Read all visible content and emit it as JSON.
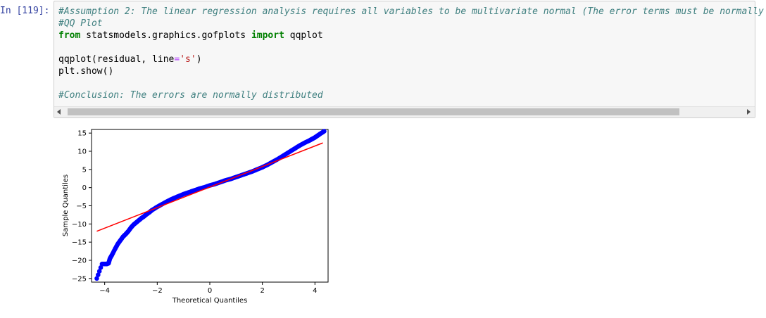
{
  "cell": {
    "prompt": "In [119]:",
    "code": {
      "comment1": "#Assumption 2: The linear regression analysis requires all variables to be multivariate normal (The error terms must be normally",
      "comment2": "#QQ Plot",
      "from_kw": "from",
      "module": " statsmodels.graphics.gofplots ",
      "import_kw": "import",
      "import_name": " qqplot",
      "call_prefix": "qqplot(residual, line",
      "eq": "=",
      "str": "'s'",
      "call_suffix": ")",
      "show": "plt.show()",
      "comment3": "#Conclusion: The errors are normally distributed"
    }
  },
  "scrollbar": {
    "left_icon": "scroll-left-arrow-icon",
    "right_icon": "scroll-right-arrow-icon"
  },
  "chart_data": {
    "type": "scatter",
    "xlabel": "Theoretical Quantiles",
    "ylabel": "Sample Quantiles",
    "xlim": [
      -4.5,
      4.5
    ],
    "ylim": [
      -26,
      16
    ],
    "xticks": [
      -4,
      -2,
      0,
      2,
      4
    ],
    "yticks": [
      15,
      10,
      5,
      0,
      -5,
      -10,
      -15,
      -20,
      -25
    ],
    "marker_color": "#0000ff",
    "line_color": "#ff0000",
    "reference_line": {
      "x": [
        -4.3,
        4.3
      ],
      "y": [
        -12,
        12.3
      ]
    },
    "points": {
      "x": [
        -4.3,
        -4.1,
        -4.0,
        -3.92,
        -3.85,
        -3.8,
        -3.72,
        -3.6,
        -3.5,
        -3.4,
        -3.3,
        -3.2,
        -3.1,
        -3.0,
        -2.9,
        -2.8,
        -2.7,
        -2.6,
        -2.5,
        -2.4,
        -2.3,
        -2.2,
        -2.0,
        -1.8,
        -1.6,
        -1.4,
        -1.2,
        -1.0,
        -0.8,
        -0.6,
        -0.4,
        -0.2,
        0.0,
        0.2,
        0.4,
        0.6,
        0.8,
        1.0,
        1.2,
        1.4,
        1.6,
        1.8,
        2.0,
        2.2,
        2.4,
        2.6,
        2.8,
        3.0,
        3.2,
        3.4,
        3.6,
        3.8,
        3.9,
        4.0,
        4.1,
        4.2,
        4.35
      ],
      "y": [
        -25,
        -21,
        -21,
        -21,
        -20.8,
        -19.5,
        -18.5,
        -16.8,
        -15.5,
        -14.5,
        -13.5,
        -12.8,
        -12,
        -11,
        -10.2,
        -9.6,
        -9,
        -8.4,
        -7.9,
        -7.3,
        -6.8,
        -6.2,
        -5.3,
        -4.5,
        -3.7,
        -3.0,
        -2.4,
        -1.8,
        -1.3,
        -0.8,
        -0.3,
        0.1,
        0.6,
        1.0,
        1.5,
        2.0,
        2.4,
        2.9,
        3.4,
        3.9,
        4.4,
        5.0,
        5.6,
        6.3,
        7.1,
        7.9,
        8.8,
        9.7,
        10.6,
        11.5,
        12.3,
        13.0,
        13.4,
        13.8,
        14.3,
        14.8,
        15.5
      ]
    }
  }
}
